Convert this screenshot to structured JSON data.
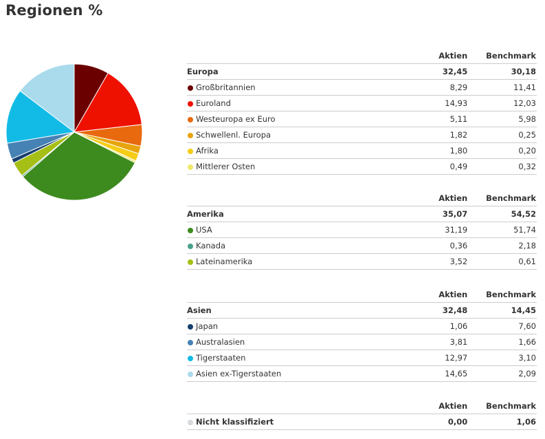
{
  "page": {
    "title": "Regionen %"
  },
  "columns": {
    "aktien": "Aktien",
    "benchmark": "Benchmark"
  },
  "groups": [
    {
      "name": "Europa",
      "aktien": "32,45",
      "benchmark": "30,18",
      "items": [
        {
          "name": "Großbritannien",
          "aktien": "8,29",
          "benchmark": "11,41",
          "color": "#6b0000"
        },
        {
          "name": "Euroland",
          "aktien": "14,93",
          "benchmark": "12,03",
          "color": "#ee1100"
        },
        {
          "name": "Westeuropa ex Euro",
          "aktien": "5,11",
          "benchmark": "5,98",
          "color": "#e9690f"
        },
        {
          "name": "Schwellenl. Europa",
          "aktien": "1,82",
          "benchmark": "0,25",
          "color": "#e8a40c"
        },
        {
          "name": "Afrika",
          "aktien": "1,80",
          "benchmark": "0,20",
          "color": "#f5cc16"
        },
        {
          "name": "Mittlerer Osten",
          "aktien": "0,49",
          "benchmark": "0,32",
          "color": "#f0e86a"
        }
      ]
    },
    {
      "name": "Amerika",
      "aktien": "35,07",
      "benchmark": "54,52",
      "items": [
        {
          "name": "USA",
          "aktien": "31,19",
          "benchmark": "51,74",
          "color": "#3d8b1e"
        },
        {
          "name": "Kanada",
          "aktien": "0,36",
          "benchmark": "2,18",
          "color": "#4aa08a"
        },
        {
          "name": "Lateinamerika",
          "aktien": "3,52",
          "benchmark": "0,61",
          "color": "#a6bf16"
        }
      ]
    },
    {
      "name": "Asien",
      "aktien": "32,48",
      "benchmark": "14,45",
      "items": [
        {
          "name": "Japan",
          "aktien": "1,06",
          "benchmark": "7,60",
          "color": "#173f6f"
        },
        {
          "name": "Australasien",
          "aktien": "3,81",
          "benchmark": "1,66",
          "color": "#4682b4"
        },
        {
          "name": "Tigerstaaten",
          "aktien": "12,97",
          "benchmark": "3,10",
          "color": "#12bbe6"
        },
        {
          "name": "Asien ex-Tigerstaaten",
          "aktien": "14,65",
          "benchmark": "2,09",
          "color": "#aadbec"
        }
      ]
    },
    {
      "name": "Nicht klassifiziert",
      "aktien": "0,00",
      "benchmark": "1,06",
      "color": "#d6d9dc",
      "items": []
    }
  ],
  "chart_data": {
    "type": "pie",
    "title": "Regionen %",
    "series_name": "Aktien",
    "start_angle_deg": 0,
    "direction": "clockwise",
    "slices": [
      {
        "label": "Großbritannien",
        "value": 8.29,
        "color": "#6b0000"
      },
      {
        "label": "Euroland",
        "value": 14.93,
        "color": "#ee1100"
      },
      {
        "label": "Westeuropa ex Euro",
        "value": 5.11,
        "color": "#e9690f"
      },
      {
        "label": "Schwellenl. Europa",
        "value": 1.82,
        "color": "#e8a40c"
      },
      {
        "label": "Afrika",
        "value": 1.8,
        "color": "#f5cc16"
      },
      {
        "label": "Mittlerer Osten",
        "value": 0.49,
        "color": "#f0e86a"
      },
      {
        "label": "USA",
        "value": 31.19,
        "color": "#3d8b1e"
      },
      {
        "label": "Kanada",
        "value": 0.36,
        "color": "#4aa08a"
      },
      {
        "label": "Lateinamerika",
        "value": 3.52,
        "color": "#a6bf16"
      },
      {
        "label": "Japan",
        "value": 1.06,
        "color": "#173f6f"
      },
      {
        "label": "Australasien",
        "value": 3.81,
        "color": "#4682b4"
      },
      {
        "label": "Tigerstaaten",
        "value": 12.97,
        "color": "#12bbe6"
      },
      {
        "label": "Asien ex-Tigerstaaten",
        "value": 14.65,
        "color": "#aadbec"
      },
      {
        "label": "Nicht klassifiziert",
        "value": 0.0,
        "color": "#d6d9dc"
      }
    ]
  }
}
